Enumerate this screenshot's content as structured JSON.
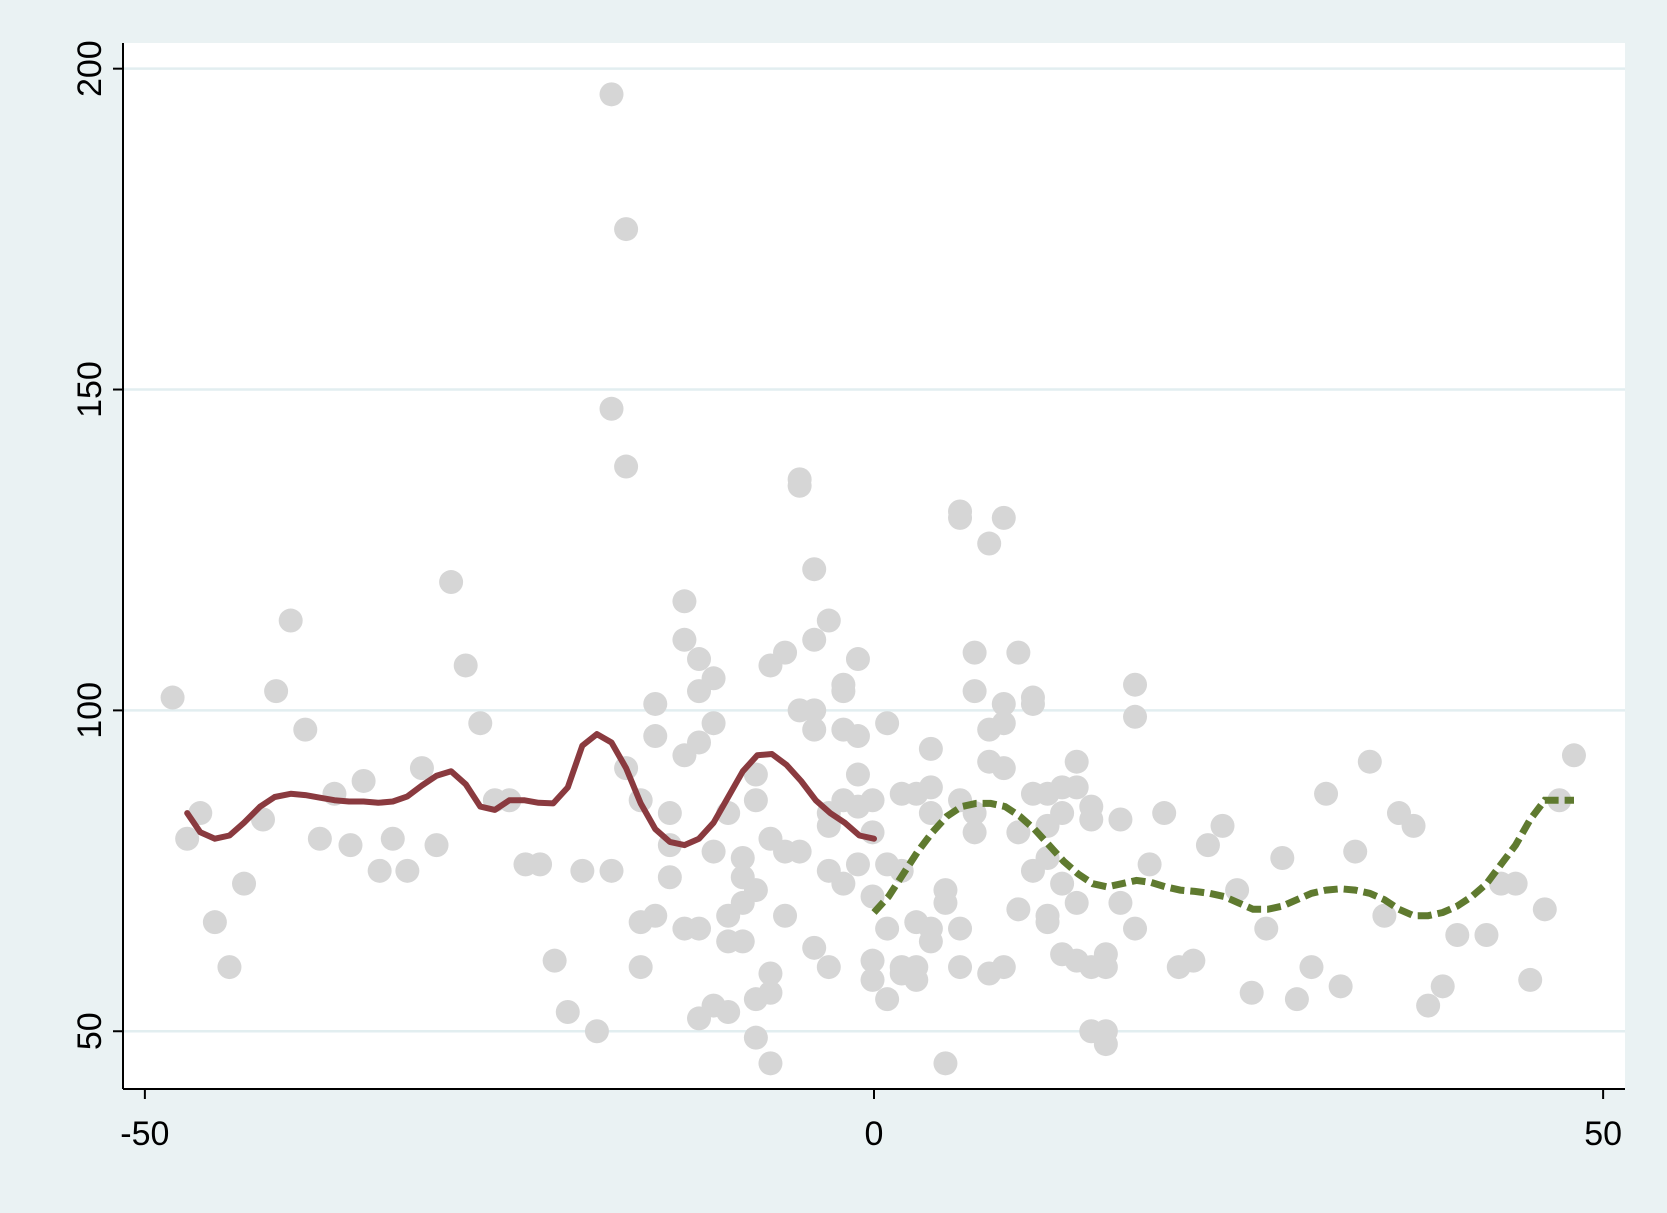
{
  "chart_data": {
    "type": "scatter",
    "title": "",
    "xlabel": "",
    "ylabel": "",
    "xlim": [
      -51.5,
      51.5
    ],
    "ylim": [
      41,
      204
    ],
    "x_ticks": [
      -50,
      0,
      50
    ],
    "y_ticks": [
      50,
      100,
      150,
      200
    ],
    "x_tick_labels": [
      "-50",
      "0",
      "50"
    ],
    "y_tick_labels": [
      "50",
      "100",
      "150",
      "200"
    ],
    "grid": "horizontal",
    "legend": "none",
    "colors": {
      "background": "#eaf2f3",
      "plot_area": "#ffffff",
      "gridline": "#e2eef0",
      "points": "#d6d6d6",
      "left_line": "#8a3a3f",
      "right_line": "#5f7a2f",
      "axis": "#000000"
    },
    "series": [
      {
        "type": "scatter",
        "points": [
          [
            -48.1,
            102
          ],
          [
            -47.1,
            80
          ],
          [
            -46.2,
            84
          ],
          [
            -45.2,
            67
          ],
          [
            -44.2,
            60
          ],
          [
            -43.2,
            73
          ],
          [
            -41.9,
            83
          ],
          [
            -41.0,
            103
          ],
          [
            -40.0,
            114
          ],
          [
            -39.0,
            97
          ],
          [
            -38.0,
            80
          ],
          [
            -37.0,
            87
          ],
          [
            -35.9,
            79
          ],
          [
            -35.0,
            89
          ],
          [
            -33.9,
            75
          ],
          [
            -33.0,
            80
          ],
          [
            -32.0,
            75
          ],
          [
            -31.0,
            91
          ],
          [
            -30.0,
            79
          ],
          [
            -29.0,
            120
          ],
          [
            -28.0,
            107
          ],
          [
            -27.0,
            98
          ],
          [
            -26.0,
            86
          ],
          [
            -25.0,
            86
          ],
          [
            -23.9,
            76
          ],
          [
            -22.9,
            76
          ],
          [
            -21.9,
            61
          ],
          [
            -21.0,
            53
          ],
          [
            -20.0,
            75
          ],
          [
            -19.0,
            50
          ],
          [
            -18.0,
            196
          ],
          [
            -18.0,
            147
          ],
          [
            -18.0,
            75
          ],
          [
            -17.0,
            175
          ],
          [
            -17.0,
            138
          ],
          [
            -17.0,
            91
          ],
          [
            -16.0,
            86
          ],
          [
            -16.0,
            67
          ],
          [
            -16.0,
            60
          ],
          [
            -15.0,
            101
          ],
          [
            -15.0,
            96
          ],
          [
            -15.0,
            68
          ],
          [
            -14.0,
            84
          ],
          [
            -14.0,
            79
          ],
          [
            -14.0,
            74
          ],
          [
            -13.0,
            117
          ],
          [
            -13.0,
            111
          ],
          [
            -13.0,
            93
          ],
          [
            -13.0,
            66
          ],
          [
            -12.0,
            108
          ],
          [
            -12.0,
            103
          ],
          [
            -12.0,
            95
          ],
          [
            -12.0,
            66
          ],
          [
            -12.0,
            52
          ],
          [
            -11.0,
            105
          ],
          [
            -11.0,
            98
          ],
          [
            -11.0,
            78
          ],
          [
            -11.0,
            54
          ],
          [
            -10.0,
            84
          ],
          [
            -10.0,
            68
          ],
          [
            -10.0,
            64
          ],
          [
            -10.0,
            53
          ],
          [
            -9.0,
            77
          ],
          [
            -9.0,
            74
          ],
          [
            -9.0,
            70
          ],
          [
            -9.0,
            64
          ],
          [
            -8.1,
            90
          ],
          [
            -8.1,
            86
          ],
          [
            -8.1,
            72
          ],
          [
            -8.1,
            55
          ],
          [
            -8.1,
            49
          ],
          [
            -7.1,
            107
          ],
          [
            -7.1,
            80
          ],
          [
            -7.1,
            59
          ],
          [
            -7.1,
            56
          ],
          [
            -7.1,
            45
          ],
          [
            -6.1,
            109
          ],
          [
            -6.1,
            78
          ],
          [
            -6.1,
            68
          ],
          [
            -5.1,
            136
          ],
          [
            -5.1,
            135
          ],
          [
            -5.1,
            100
          ],
          [
            -5.1,
            78
          ],
          [
            -4.1,
            122
          ],
          [
            -4.1,
            111
          ],
          [
            -4.1,
            100
          ],
          [
            -4.1,
            97
          ],
          [
            -4.1,
            63
          ],
          [
            -3.1,
            114
          ],
          [
            -3.1,
            84
          ],
          [
            -3.1,
            82
          ],
          [
            -3.1,
            75
          ],
          [
            -3.1,
            60
          ],
          [
            -2.1,
            104
          ],
          [
            -2.1,
            103
          ],
          [
            -2.1,
            97
          ],
          [
            -2.1,
            86
          ],
          [
            -2.1,
            73
          ],
          [
            -1.1,
            108
          ],
          [
            -1.1,
            96
          ],
          [
            -1.1,
            90
          ],
          [
            -1.1,
            85
          ],
          [
            -1.1,
            76
          ],
          [
            -0.1,
            86
          ],
          [
            -0.1,
            81
          ],
          [
            -0.1,
            61
          ],
          [
            -0.1,
            58
          ],
          [
            -0.1,
            71
          ],
          [
            0.9,
            98
          ],
          [
            0.9,
            76
          ],
          [
            0.9,
            55
          ],
          [
            0.9,
            66
          ],
          [
            1.9,
            87
          ],
          [
            1.9,
            75
          ],
          [
            1.9,
            60
          ],
          [
            1.9,
            59
          ],
          [
            2.9,
            87
          ],
          [
            2.9,
            67
          ],
          [
            2.9,
            60
          ],
          [
            2.9,
            58
          ],
          [
            3.9,
            94
          ],
          [
            3.9,
            88
          ],
          [
            3.9,
            84
          ],
          [
            3.9,
            64
          ],
          [
            3.9,
            66
          ],
          [
            4.9,
            72
          ],
          [
            4.9,
            70
          ],
          [
            4.9,
            45
          ],
          [
            5.9,
            131
          ],
          [
            5.9,
            130
          ],
          [
            5.9,
            86
          ],
          [
            5.9,
            66
          ],
          [
            5.9,
            60
          ],
          [
            6.9,
            109
          ],
          [
            6.9,
            103
          ],
          [
            6.9,
            84
          ],
          [
            6.9,
            81
          ],
          [
            7.9,
            126
          ],
          [
            7.9,
            97
          ],
          [
            7.9,
            92
          ],
          [
            7.9,
            59
          ],
          [
            8.9,
            130
          ],
          [
            8.9,
            101
          ],
          [
            8.9,
            98
          ],
          [
            8.9,
            91
          ],
          [
            8.9,
            60
          ],
          [
            9.9,
            109
          ],
          [
            9.9,
            81
          ],
          [
            9.9,
            69
          ],
          [
            10.9,
            102
          ],
          [
            10.9,
            101
          ],
          [
            10.9,
            87
          ],
          [
            10.9,
            75
          ],
          [
            11.9,
            87
          ],
          [
            11.9,
            82
          ],
          [
            11.9,
            77
          ],
          [
            11.9,
            67
          ],
          [
            11.9,
            68
          ],
          [
            12.9,
            88
          ],
          [
            12.9,
            84
          ],
          [
            12.9,
            73
          ],
          [
            12.9,
            62
          ],
          [
            13.9,
            92
          ],
          [
            13.9,
            88
          ],
          [
            13.9,
            70
          ],
          [
            13.9,
            61
          ],
          [
            14.9,
            85
          ],
          [
            14.9,
            83
          ],
          [
            14.9,
            60
          ],
          [
            14.9,
            50
          ],
          [
            15.9,
            62
          ],
          [
            15.9,
            60
          ],
          [
            15.9,
            50
          ],
          [
            15.9,
            48
          ],
          [
            16.9,
            83
          ],
          [
            16.9,
            70
          ],
          [
            17.9,
            104
          ],
          [
            17.9,
            99
          ],
          [
            17.9,
            66
          ],
          [
            18.9,
            76
          ],
          [
            19.9,
            84
          ],
          [
            20.9,
            60
          ],
          [
            21.9,
            61
          ],
          [
            22.9,
            79
          ],
          [
            23.9,
            82
          ],
          [
            24.9,
            72
          ],
          [
            25.9,
            56
          ],
          [
            26.9,
            66
          ],
          [
            28.0,
            77
          ],
          [
            29.0,
            55
          ],
          [
            30.0,
            60
          ],
          [
            31.0,
            87
          ],
          [
            32.0,
            57
          ],
          [
            33.0,
            78
          ],
          [
            34.0,
            92
          ],
          [
            35.0,
            68
          ],
          [
            36.0,
            84
          ],
          [
            37.0,
            82
          ],
          [
            38.0,
            54
          ],
          [
            39.0,
            57
          ],
          [
            40.0,
            65
          ],
          [
            42.0,
            65
          ],
          [
            43.0,
            73
          ],
          [
            44.0,
            73
          ],
          [
            45.0,
            58
          ],
          [
            46.0,
            69
          ],
          [
            47.0,
            86
          ],
          [
            48.0,
            93
          ]
        ]
      },
      {
        "type": "line",
        "style": "solid",
        "x": [
          -47.1,
          -46.2,
          -45.2,
          -44.2,
          -43.2,
          -42.1,
          -41.1,
          -40.0,
          -39.0,
          -38.0,
          -37.0,
          -36.0,
          -35.0,
          -34.0,
          -33.0,
          -32.0,
          -31.0,
          -30.0,
          -29.0,
          -28.0,
          -27.0,
          -26.0,
          -25.0,
          -24.0,
          -23.0,
          -22.0,
          -21.0,
          -20.0,
          -19.0,
          -18.0,
          -17.0,
          -16.0,
          -15.0,
          -14.0,
          -13.0,
          -12.0,
          -11.0,
          -10.0,
          -9.0,
          -8.0,
          -7.0,
          -6.0,
          -5.0,
          -4.0,
          -3.0,
          -2.0,
          -1.0,
          0.0
        ],
        "y": [
          84,
          81,
          80,
          80.5,
          82.5,
          85,
          86.5,
          87,
          86.8,
          86.4,
          86,
          85.8,
          85.8,
          85.6,
          85.8,
          86.6,
          88.3,
          89.8,
          90.5,
          88.5,
          85,
          84.5,
          86,
          86,
          85.6,
          85.5,
          88,
          94.5,
          96.3,
          95,
          91,
          85.5,
          81.5,
          79.5,
          79,
          80,
          82.5,
          86.5,
          90.5,
          93,
          93.2,
          91.5,
          89,
          86,
          84,
          82.5,
          80.5,
          80
        ]
      },
      {
        "type": "line",
        "style": "dashed",
        "x": [
          0.0,
          1.0,
          2.0,
          3.0,
          4.0,
          5.0,
          6.0,
          7.0,
          8.0,
          9.0,
          10.0,
          11.0,
          12.0,
          13.0,
          14.0,
          15.0,
          16.0,
          17.0,
          18.0,
          19.0,
          20.0,
          21.0,
          22.0,
          23.0,
          24.0,
          25.0,
          26.0,
          27.0,
          28.0,
          29.0,
          30.0,
          31.0,
          32.0,
          33.0,
          34.0,
          35.0,
          36.0,
          37.0,
          38.0,
          39.0,
          40.0,
          41.0,
          42.0,
          43.0,
          44.0,
          45.0,
          46.0,
          47.0,
          48.0
        ],
        "y": [
          68.5,
          71,
          74.5,
          78,
          81,
          83.5,
          85,
          85.5,
          85.5,
          85,
          83.5,
          81.5,
          79,
          76.5,
          74.5,
          73,
          72.5,
          73,
          73.5,
          73.2,
          72.5,
          72,
          71.8,
          71.5,
          71,
          70,
          69,
          69,
          69.5,
          70.5,
          71.5,
          72,
          72.2,
          72,
          71.5,
          70.5,
          69,
          68,
          68,
          68.5,
          69.5,
          71,
          73,
          76,
          79,
          83,
          86,
          86,
          86
        ]
      }
    ]
  }
}
